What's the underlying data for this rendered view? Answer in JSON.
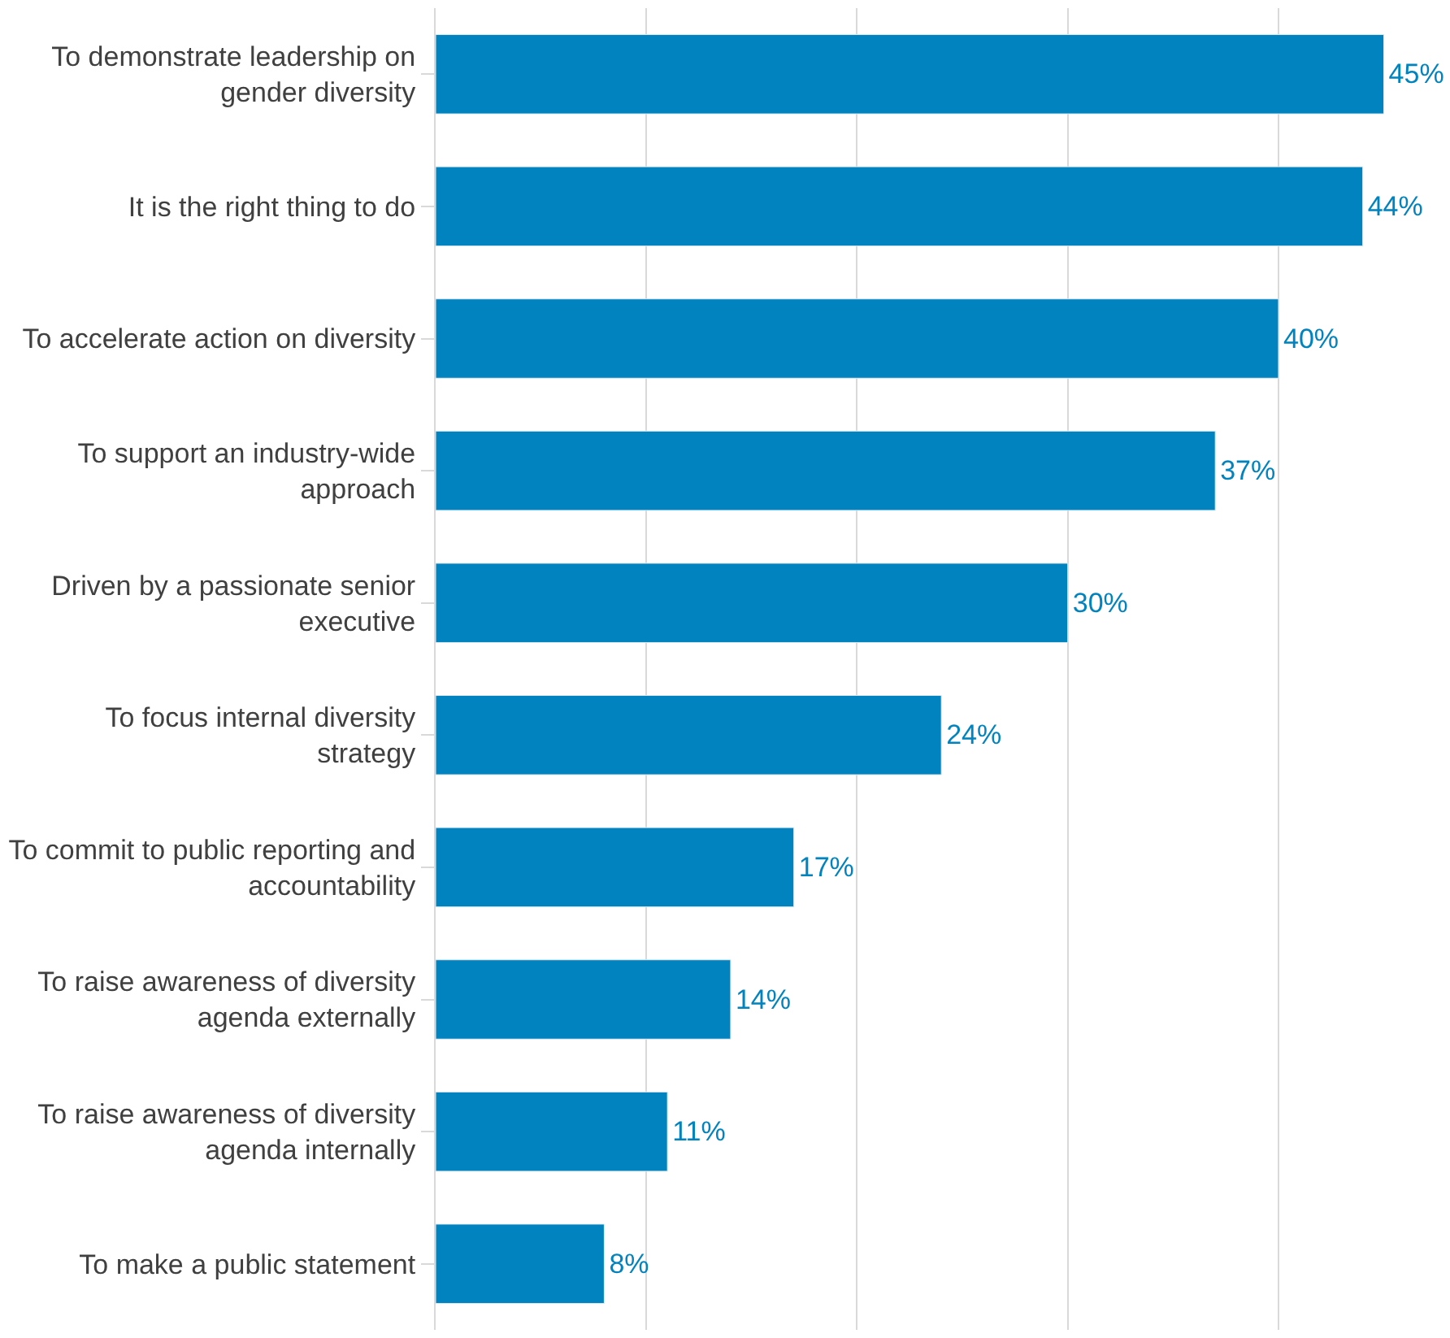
{
  "chart_data": {
    "type": "bar",
    "orientation": "horizontal",
    "categories": [
      "To demonstrate leadership on gender diversity",
      "It is the right thing to do",
      "To accelerate action on diversity",
      "To support an industry-wide approach",
      "Driven by a passionate senior executive",
      "To focus internal diversity strategy",
      "To commit to public reporting and accountability",
      "To raise awareness of diversity agenda externally",
      "To raise awareness of diversity agenda internally",
      "To make a public statement"
    ],
    "values": [
      45,
      44,
      40,
      37,
      30,
      24,
      17,
      14,
      11,
      8
    ],
    "value_labels": [
      "45%",
      "44%",
      "40%",
      "37%",
      "30%",
      "24%",
      "17%",
      "14%",
      "11%",
      "8%"
    ],
    "color": "#0083bf",
    "grid": "x",
    "tick_labels": "y",
    "legend": false
  }
}
